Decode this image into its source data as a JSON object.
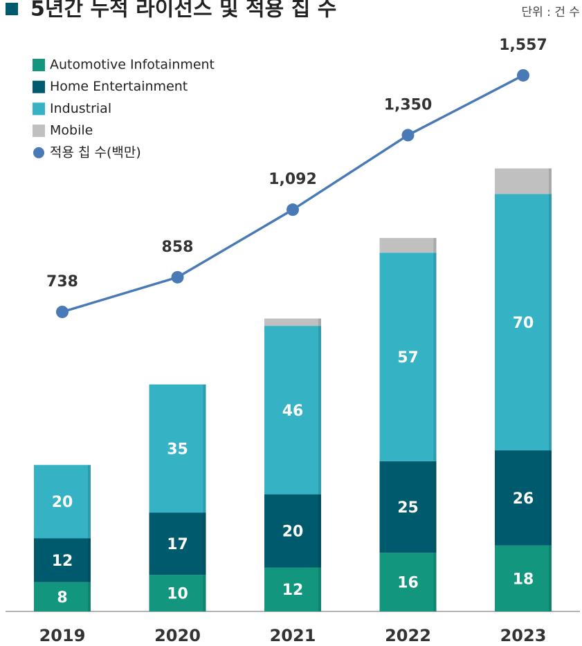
{
  "chart_data": {
    "type": "bar",
    "stacked": true,
    "title": "5년간 누적 라이선스 및 적용 칩 수",
    "unit": "단위 : 건 수",
    "categories": [
      "2019",
      "2020",
      "2021",
      "2022",
      "2023"
    ],
    "ylim": [
      0,
      167
    ],
    "y2lim": [
      -299,
      1818
    ],
    "series": [
      {
        "name": "Automotive Infotainment",
        "color": "#12967e",
        "values": [
          8,
          10,
          12,
          16,
          18
        ]
      },
      {
        "name": "Home Entertainment",
        "color": "#005a6e",
        "values": [
          12,
          17,
          20,
          25,
          26
        ]
      },
      {
        "name": "Industrial",
        "color": "#35b2c4",
        "values": [
          20,
          35,
          46,
          57,
          70
        ]
      },
      {
        "name": "Mobile",
        "color": "#c0c0c0",
        "values": [
          0,
          0,
          2,
          4,
          7
        ]
      },
      {
        "name": "적용 칩 수(백만)",
        "color": "#4a7ab5",
        "axis": "y2",
        "values": [
          738,
          858,
          1092,
          1350,
          1557
        ],
        "value_labels": [
          "738",
          "858",
          "1,092",
          "1,350",
          "1,557"
        ]
      }
    ]
  }
}
